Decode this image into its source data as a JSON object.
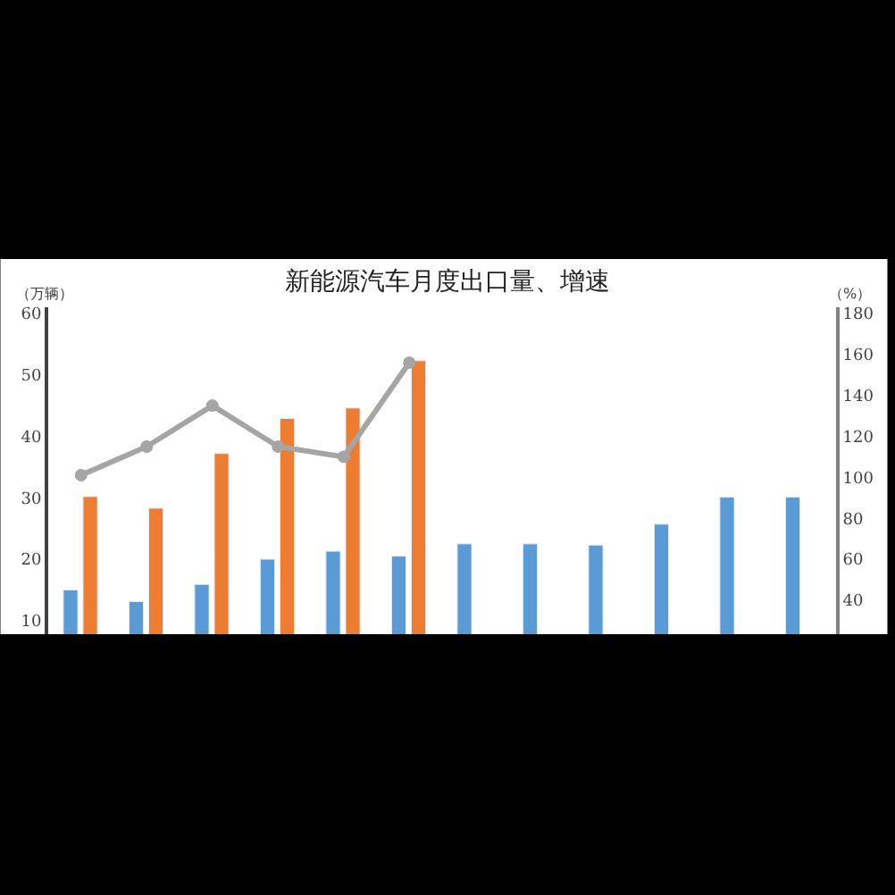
{
  "chart_data": {
    "type": "bar",
    "title": "新能源汽车月度出口量、增速",
    "annotations": [
      "（万辆）",
      "（%）"
    ],
    "categories": [
      null,
      null,
      null,
      null,
      null,
      null,
      null,
      null,
      null,
      null,
      null,
      null
    ],
    "series": [
      {
        "color": "#5b9bd5",
        "values": [
          15.0,
          13.1,
          15.9,
          20.0,
          21.3,
          20.5,
          22.5,
          22.5,
          22.3,
          25.7,
          30.1,
          30.1
        ]
      },
      {
        "color": "#ed7d31",
        "values": [
          30.2,
          28.3,
          37.2,
          42.9,
          44.6,
          52.3,
          null,
          null,
          null,
          null,
          null,
          null
        ]
      },
      {
        "type": "line",
        "axis": "y2",
        "color": "#a5a5a5",
        "marker": "circle",
        "values": [
          101,
          115,
          135,
          115,
          110,
          156,
          null,
          null,
          null,
          null,
          null,
          null
        ]
      }
    ],
    "ylim": [
      7.8,
      61
    ],
    "yticks": [
      10,
      20,
      30,
      40,
      50,
      60
    ],
    "y2lim": [
      23.4,
      183
    ],
    "y2ticks": [
      40,
      60,
      80,
      100,
      120,
      140,
      160,
      180
    ]
  }
}
